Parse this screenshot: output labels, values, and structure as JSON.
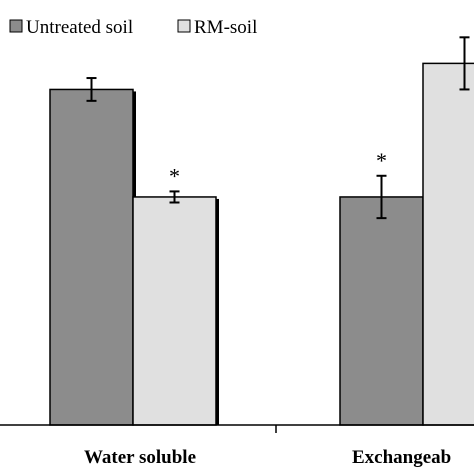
{
  "chart_data": {
    "type": "bar",
    "categories": [
      "Water soluble",
      "Exchangeab"
    ],
    "series": [
      {
        "name": "Untreated soil",
        "color": "#8c8c8c",
        "values": [
          10.3,
          7.0
        ],
        "error": [
          0.35,
          0.65
        ],
        "significance": [
          "",
          "*"
        ]
      },
      {
        "name": "RM-soil",
        "color": "#e0e0e0",
        "values": [
          7.0,
          11.1
        ],
        "error": [
          0.17,
          0.8
        ],
        "significance": [
          "*",
          ""
        ]
      }
    ],
    "title": "",
    "xlabel": "",
    "ylabel": "",
    "ylim": [
      0,
      12.8
    ],
    "grid": false,
    "legend_position": "top-left"
  }
}
